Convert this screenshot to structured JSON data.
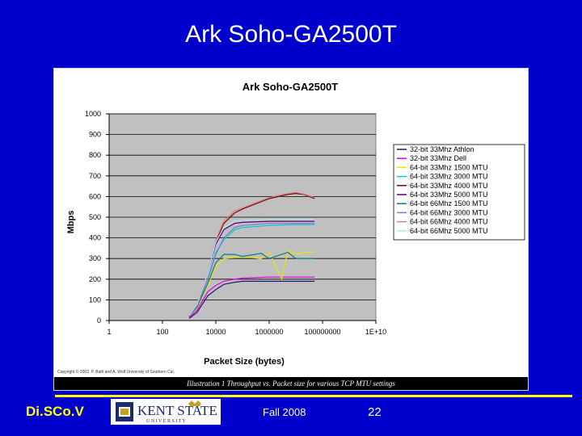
{
  "slide": {
    "title": "Ark Soho-GA2500T",
    "footer_brand": "Di.SCo.V",
    "logo_text": "KENT STATE",
    "logo_subtext": "U N I V E R S I T Y",
    "date": "Fall 2008",
    "page_number": "22"
  },
  "colors": {
    "slide_background": "#0000cc",
    "plot_area": "#c0c0c0",
    "footer_accent": "#ffff00"
  },
  "figure": {
    "copyright": "Copyright © 2002, P. Bahl and A. Wolf  University of Southern Cal.",
    "caption": "Illustration 1 Throughput vs. Packet size for various TCP MTU settings"
  },
  "chart_data": {
    "type": "line",
    "title": "Ark Soho-GA2500T",
    "xlabel": "Packet Size (bytes)",
    "ylabel": "Mbps",
    "x_scale": "log",
    "xlim": [
      1,
      10000000000
    ],
    "ylim": [
      0,
      1000
    ],
    "x_ticks": [
      1,
      100,
      10000,
      1000000,
      100000000,
      10000000000
    ],
    "x_tick_labels": [
      "1",
      "100",
      "10000",
      "1000000",
      "100000000",
      "1E+10"
    ],
    "y_ticks": [
      0,
      100,
      200,
      300,
      400,
      500,
      600,
      700,
      800,
      900,
      1000
    ],
    "y_tick_labels": [
      "0",
      "100",
      "200",
      "300",
      "400",
      "500",
      "600",
      "700",
      "800",
      "900",
      "1000"
    ],
    "grid": true,
    "legend_position": "right",
    "series": [
      {
        "name": "32-bit 33Mhz Athlon",
        "color": "#1a1a6e",
        "x": [
          1000,
          2000,
          5000,
          10000,
          20000,
          50000,
          100000,
          1000000,
          10000000,
          50000000
        ],
        "y": [
          10,
          40,
          120,
          150,
          175,
          185,
          190,
          190,
          190,
          190
        ]
      },
      {
        "name": "32-bit 33Mhz Dell",
        "color": "#e000e0",
        "x": [
          1000,
          2000,
          5000,
          10000,
          20000,
          50000,
          100000,
          1000000,
          10000000,
          50000000
        ],
        "y": [
          15,
          50,
          140,
          170,
          190,
          200,
          205,
          210,
          210,
          210
        ]
      },
      {
        "name": "64-bit 33Mhz 1500 MTU",
        "color": "#e8e800",
        "x": [
          1000,
          2000,
          5000,
          10000,
          20000,
          50000,
          100000,
          500000,
          1000000,
          3000000,
          5000000,
          10000000,
          20000000,
          50000000
        ],
        "y": [
          20,
          60,
          170,
          260,
          300,
          305,
          310,
          300,
          330,
          200,
          340,
          320,
          330,
          330
        ]
      },
      {
        "name": "64-bit 33Mhz 3000 MTU",
        "color": "#00c8d8",
        "x": [
          1000,
          2000,
          5000,
          10000,
          20000,
          50000,
          100000,
          1000000,
          10000000,
          50000000
        ],
        "y": [
          20,
          70,
          200,
          330,
          390,
          440,
          450,
          460,
          465,
          465
        ]
      },
      {
        "name": "64-bit 33Mhz 4000 MTU",
        "color": "#800000",
        "x": [
          1000,
          2000,
          5000,
          10000,
          20000,
          50000,
          100000,
          1000000,
          5000000,
          10000000,
          20000000,
          50000000
        ],
        "y": [
          25,
          80,
          230,
          380,
          470,
          520,
          540,
          590,
          610,
          615,
          610,
          590
        ]
      },
      {
        "name": "64-bit 33Mhz 5000 MTU",
        "color": "#5a007a",
        "x": [
          1000,
          2000,
          5000,
          10000,
          20000,
          50000,
          100000,
          1000000,
          10000000,
          50000000
        ],
        "y": [
          25,
          80,
          230,
          370,
          440,
          470,
          475,
          480,
          480,
          480
        ]
      },
      {
        "name": "64-bit 66Mhz 1500 MTU",
        "color": "#008080",
        "x": [
          1000,
          2000,
          5000,
          10000,
          20000,
          50000,
          100000,
          500000,
          1000000,
          5000000,
          10000000,
          50000000
        ],
        "y": [
          20,
          65,
          180,
          280,
          320,
          320,
          310,
          325,
          300,
          330,
          300,
          300
        ]
      },
      {
        "name": "64-bit 66Mhz 3000 MTU",
        "color": "#7a7ad0",
        "x": [
          1000,
          2000,
          5000,
          10000,
          20000,
          50000,
          100000,
          1000000,
          10000000,
          50000000
        ],
        "y": [
          20,
          70,
          200,
          320,
          400,
          450,
          460,
          470,
          470,
          470
        ]
      },
      {
        "name": "64-bit 66Mhz 4000 MTU",
        "color": "#d08080",
        "x": [
          1000,
          2000,
          5000,
          10000,
          20000,
          50000,
          100000,
          1000000,
          5000000,
          10000000,
          20000000,
          50000000
        ],
        "y": [
          25,
          80,
          230,
          390,
          480,
          530,
          545,
          595,
          615,
          620,
          612,
          595
        ]
      },
      {
        "name": "64-bit 66Mhz 5000 MTU",
        "color": "#b8e0f0",
        "x": [
          1000,
          2000,
          5000,
          10000,
          20000,
          50000,
          100000,
          1000000,
          10000000,
          50000000
        ],
        "y": [
          25,
          80,
          230,
          380,
          450,
          480,
          485,
          490,
          490,
          490
        ]
      }
    ]
  }
}
